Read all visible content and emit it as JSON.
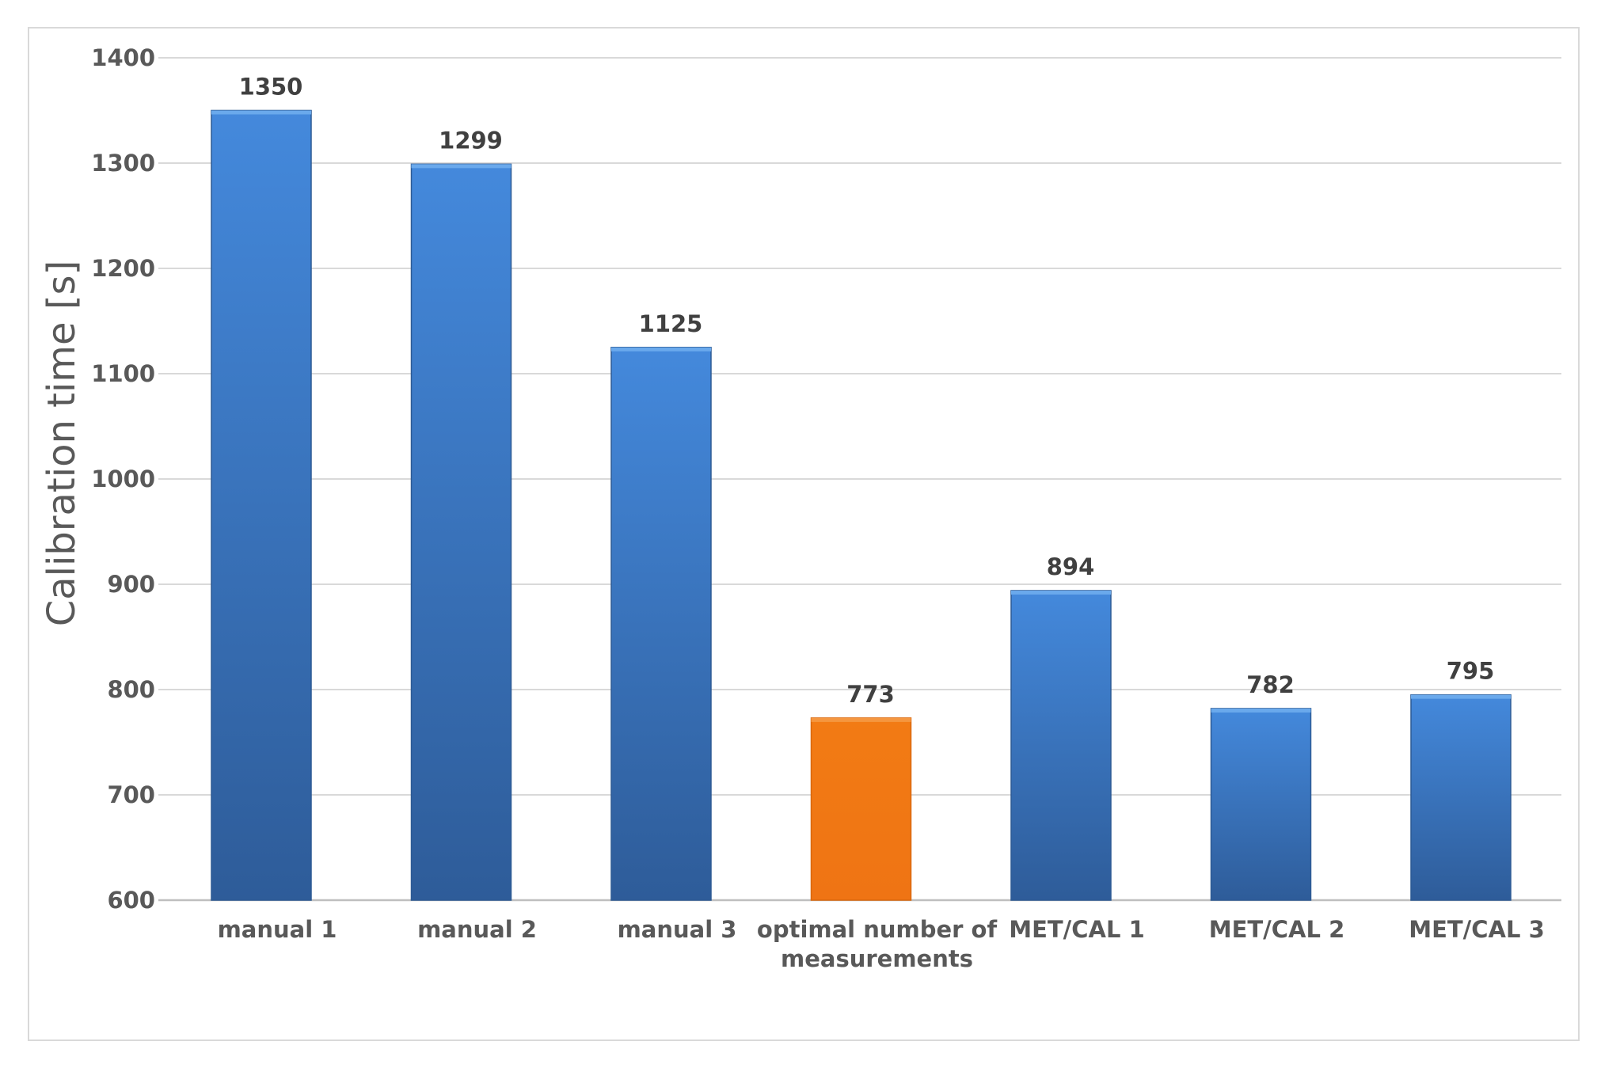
{
  "chart_data": {
    "type": "bar",
    "ylabel": "Calibration time [s]",
    "ylim": [
      600,
      1400
    ],
    "yticks": [
      600,
      700,
      800,
      900,
      1000,
      1100,
      1200,
      1300,
      1400
    ],
    "grid": true,
    "categories": [
      [
        "manual 1"
      ],
      [
        "manual 2"
      ],
      [
        "manual 3"
      ],
      [
        "optimal number of",
        "measurements"
      ],
      [
        "MET/CAL 1"
      ],
      [
        "MET/CAL 2"
      ],
      [
        "MET/CAL 3"
      ]
    ],
    "values": [
      1350,
      1299,
      1125,
      773,
      894,
      782,
      795
    ],
    "bar_colors": [
      "#3a75c4",
      "#3a75c4",
      "#3a75c4",
      "#f07a15",
      "#3a75c4",
      "#3a75c4",
      "#3a75c4"
    ],
    "colors": {
      "blue_top": "#4489dc",
      "blue_bottom": "#2e5c99",
      "orange": "#f07a15",
      "grid": "#d9d9d9"
    }
  }
}
